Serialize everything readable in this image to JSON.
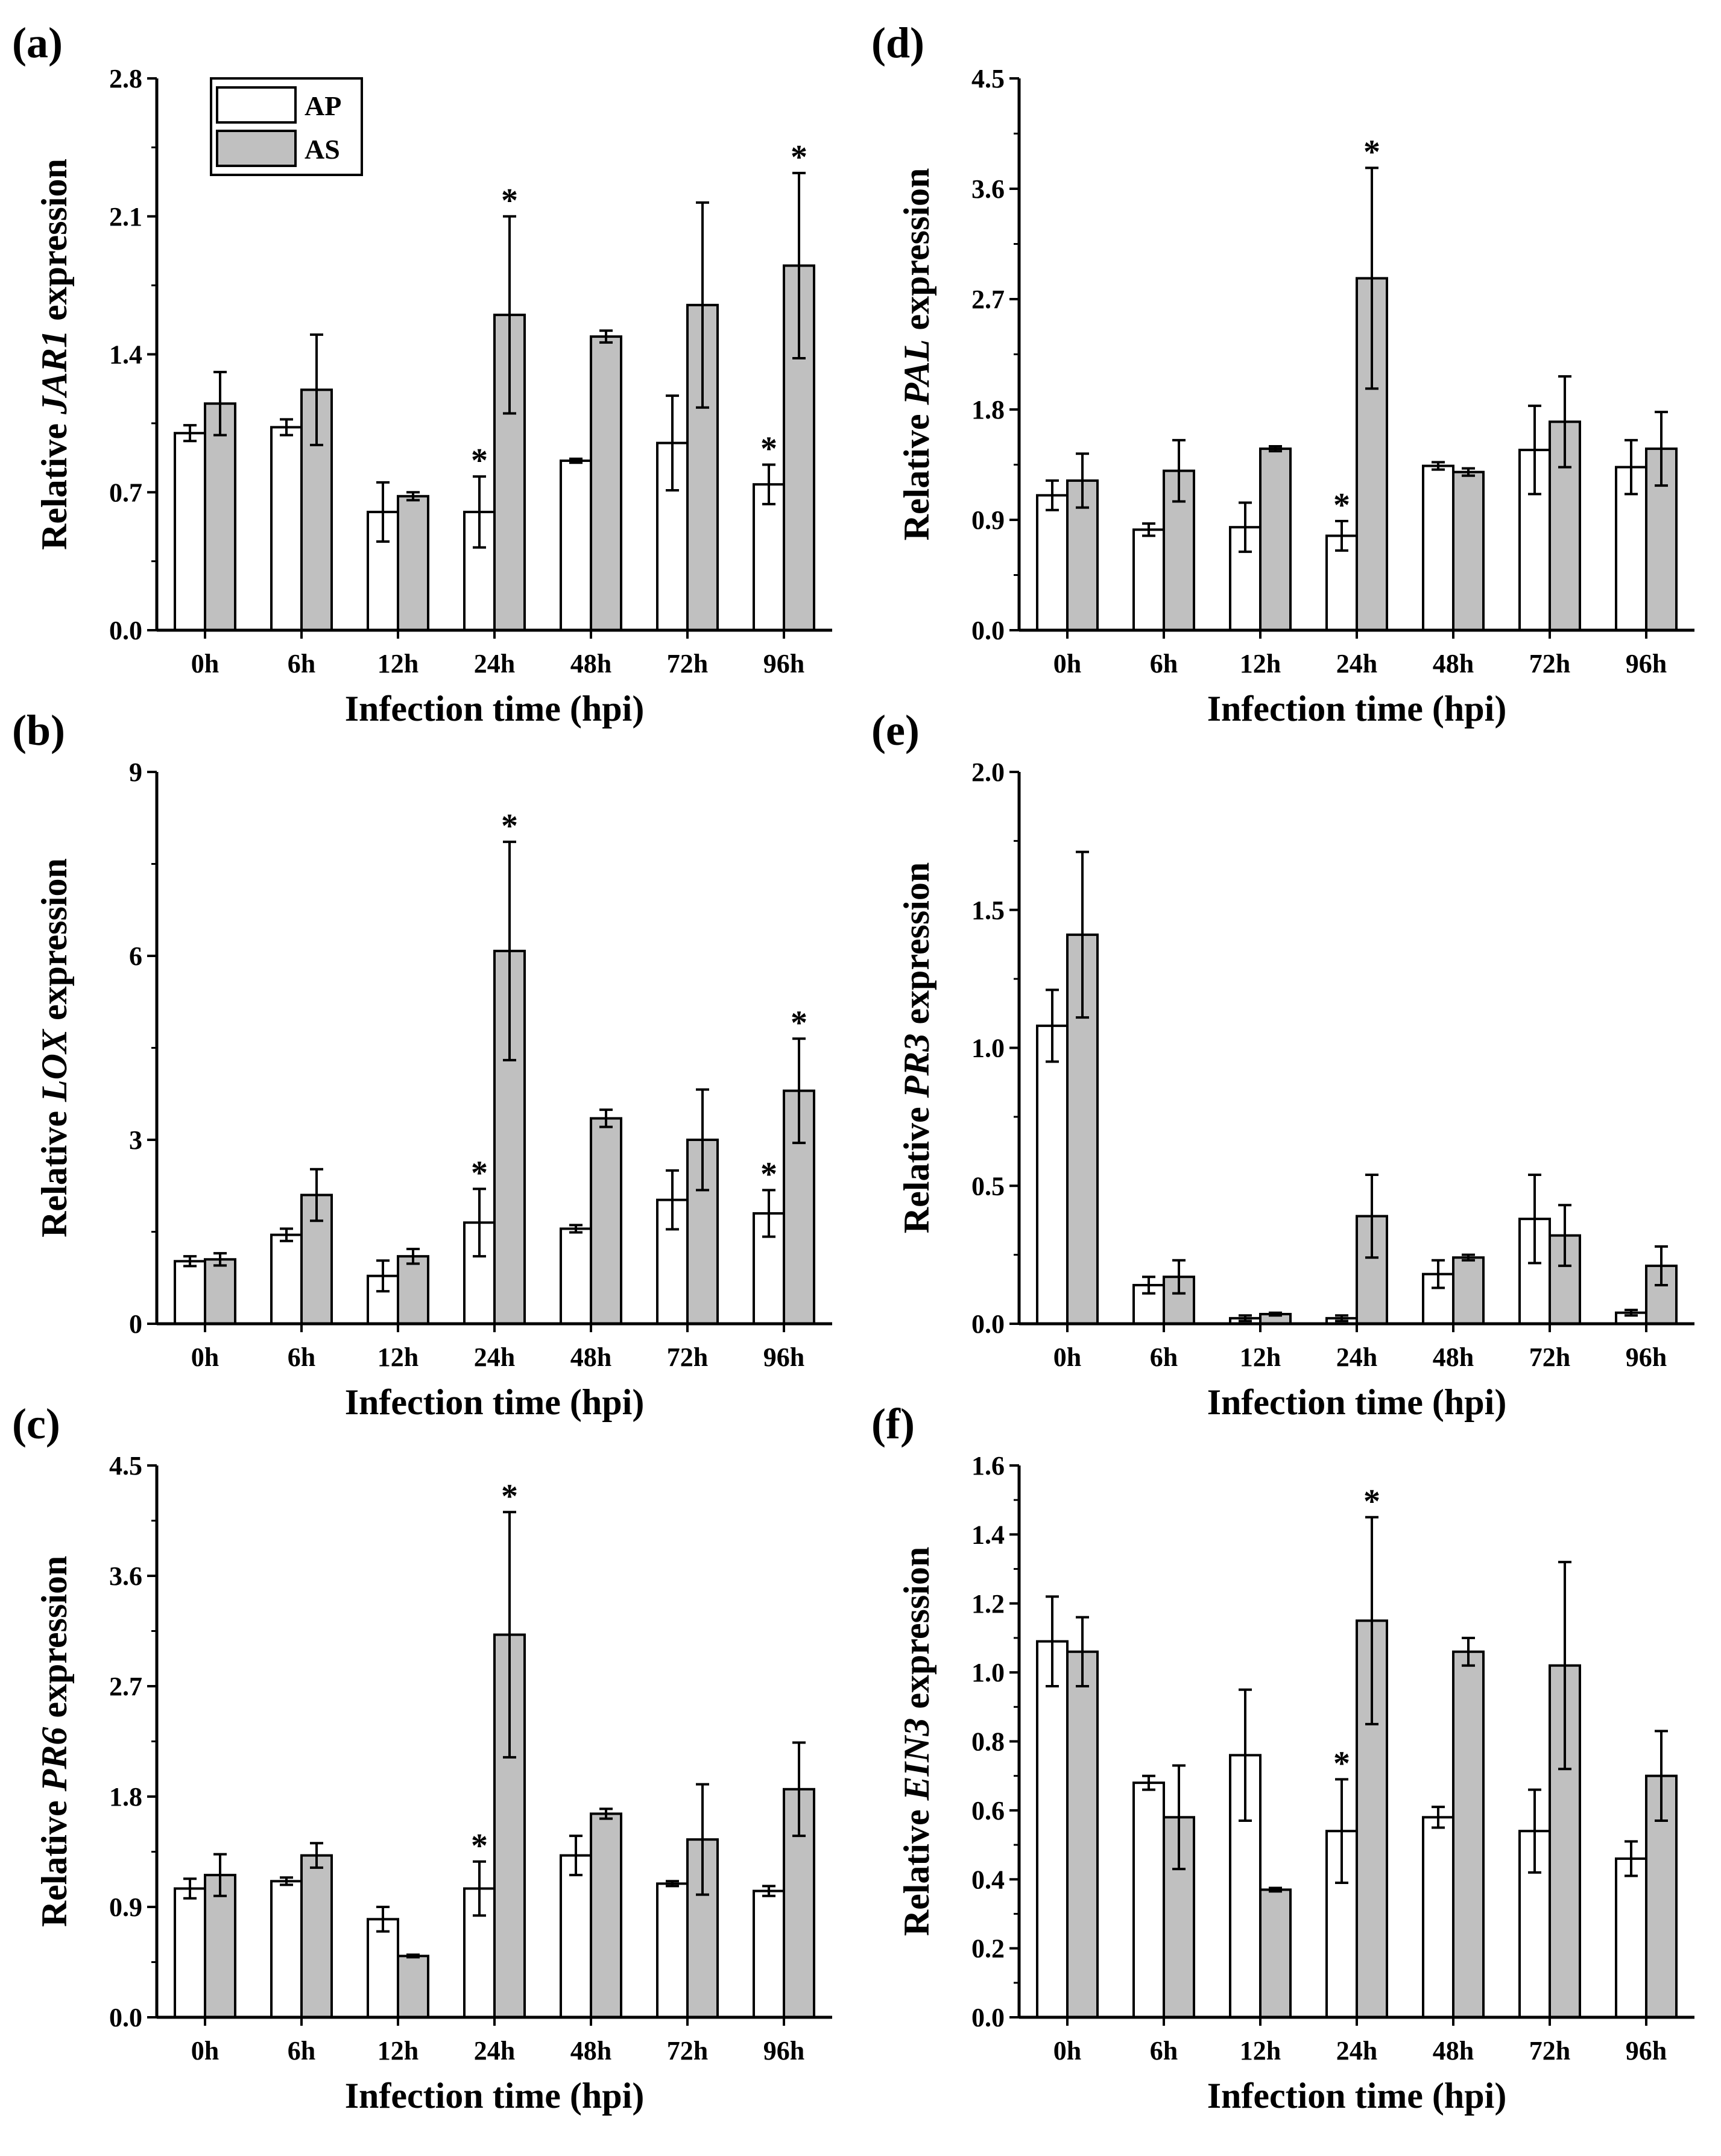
{
  "legend": {
    "series": [
      {
        "name": "AP",
        "color": "#ffffff"
      },
      {
        "name": "AS",
        "color": "#c0c0c0"
      }
    ]
  },
  "chart_data": [
    {
      "panel_label": "(a)",
      "type": "bar",
      "ylabel_prefix": "Relative ",
      "gene": "JAR1",
      "ylabel_suffix": " expression",
      "xlabel": "Infection time (hpi)",
      "categories": [
        "0h",
        "6h",
        "12h",
        "24h",
        "48h",
        "72h",
        "96h"
      ],
      "ylim": [
        0,
        2.8
      ],
      "yticks": [
        "0.0",
        "0.7",
        "1.4",
        "2.1",
        "2.8"
      ],
      "series": [
        {
          "name": "AP",
          "values": [
            1.0,
            1.03,
            0.6,
            0.6,
            0.86,
            0.95,
            0.74
          ],
          "errors": [
            0.04,
            0.04,
            0.15,
            0.18,
            0.01,
            0.24,
            0.1
          ],
          "sig": [
            false,
            false,
            false,
            true,
            false,
            false,
            true
          ]
        },
        {
          "name": "AS",
          "values": [
            1.15,
            1.22,
            0.68,
            1.6,
            1.49,
            1.65,
            1.85
          ],
          "errors": [
            0.16,
            0.28,
            0.02,
            0.5,
            0.03,
            0.52,
            0.47
          ],
          "sig": [
            false,
            false,
            false,
            true,
            false,
            false,
            true
          ]
        }
      ],
      "significance_marker": "*"
    },
    {
      "panel_label": "(b)",
      "type": "bar",
      "ylabel_prefix": "Relative ",
      "gene": "LOX",
      "ylabel_suffix": " expression",
      "xlabel": "Infection time (hpi)",
      "categories": [
        "0h",
        "6h",
        "12h",
        "24h",
        "48h",
        "72h",
        "96h"
      ],
      "ylim": [
        0,
        9
      ],
      "yticks": [
        "0",
        "3",
        "6",
        "9"
      ],
      "series": [
        {
          "name": "AP",
          "values": [
            1.02,
            1.45,
            0.78,
            1.65,
            1.55,
            2.02,
            1.8
          ],
          "errors": [
            0.08,
            0.1,
            0.25,
            0.55,
            0.06,
            0.48,
            0.38
          ],
          "sig": [
            false,
            false,
            false,
            true,
            false,
            false,
            true
          ]
        },
        {
          "name": "AS",
          "values": [
            1.05,
            2.1,
            1.1,
            6.08,
            3.35,
            3.0,
            3.8
          ],
          "errors": [
            0.1,
            0.42,
            0.12,
            1.78,
            0.14,
            0.82,
            0.85
          ],
          "sig": [
            false,
            false,
            false,
            true,
            false,
            false,
            true
          ]
        }
      ],
      "significance_marker": "*"
    },
    {
      "panel_label": "(c)",
      "type": "bar",
      "ylabel_prefix": "Relative ",
      "gene": "PR6",
      "ylabel_suffix": " expression",
      "xlabel": "Infection time (hpi)",
      "categories": [
        "0h",
        "6h",
        "12h",
        "24h",
        "48h",
        "72h",
        "96h"
      ],
      "ylim": [
        0,
        4.5
      ],
      "yticks": [
        "0.0",
        "0.9",
        "1.8",
        "2.7",
        "3.6",
        "4.5"
      ],
      "series": [
        {
          "name": "AP",
          "values": [
            1.05,
            1.11,
            0.8,
            1.05,
            1.32,
            1.09,
            1.03
          ],
          "errors": [
            0.08,
            0.03,
            0.1,
            0.22,
            0.16,
            0.02,
            0.04
          ],
          "sig": [
            false,
            false,
            false,
            true,
            false,
            false,
            false
          ]
        },
        {
          "name": "AS",
          "values": [
            1.16,
            1.32,
            0.5,
            3.12,
            1.66,
            1.45,
            1.86
          ],
          "errors": [
            0.17,
            0.1,
            0.01,
            1.0,
            0.04,
            0.45,
            0.38
          ],
          "sig": [
            false,
            false,
            false,
            true,
            false,
            false,
            false
          ]
        }
      ],
      "significance_marker": "*"
    },
    {
      "panel_label": "(d)",
      "type": "bar",
      "ylabel_prefix": "Relative ",
      "gene": "PAL",
      "ylabel_suffix": " expression",
      "xlabel": "Infection time (hpi)",
      "categories": [
        "0h",
        "6h",
        "12h",
        "24h",
        "48h",
        "72h",
        "96h"
      ],
      "ylim": [
        0,
        4.5
      ],
      "yticks": [
        "0.0",
        "0.9",
        "1.8",
        "2.7",
        "3.6",
        "4.5"
      ],
      "series": [
        {
          "name": "AP",
          "values": [
            1.1,
            0.82,
            0.84,
            0.77,
            1.34,
            1.47,
            1.33
          ],
          "errors": [
            0.12,
            0.05,
            0.2,
            0.12,
            0.03,
            0.36,
            0.22
          ],
          "sig": [
            false,
            false,
            false,
            true,
            false,
            false,
            false
          ]
        },
        {
          "name": "AS",
          "values": [
            1.22,
            1.3,
            1.48,
            2.87,
            1.29,
            1.7,
            1.48
          ],
          "errors": [
            0.22,
            0.25,
            0.02,
            0.9,
            0.03,
            0.37,
            0.3
          ],
          "sig": [
            false,
            false,
            false,
            true,
            false,
            false,
            false
          ]
        }
      ],
      "significance_marker": "*"
    },
    {
      "panel_label": "(e)",
      "type": "bar",
      "ylabel_prefix": "Relative ",
      "gene": "PR3",
      "ylabel_suffix": " expression",
      "xlabel": "Infection time (hpi)",
      "categories": [
        "0h",
        "6h",
        "12h",
        "24h",
        "48h",
        "72h",
        "96h"
      ],
      "ylim": [
        0,
        2.0
      ],
      "yticks": [
        "0.0",
        "0.5",
        "1.0",
        "1.5",
        "2.0"
      ],
      "series": [
        {
          "name": "AP",
          "values": [
            1.08,
            0.14,
            0.02,
            0.02,
            0.18,
            0.38,
            0.04
          ],
          "errors": [
            0.13,
            0.03,
            0.01,
            0.01,
            0.05,
            0.16,
            0.01
          ],
          "sig": [
            false,
            false,
            false,
            false,
            false,
            false,
            false
          ]
        },
        {
          "name": "AS",
          "values": [
            1.41,
            0.17,
            0.035,
            0.39,
            0.24,
            0.32,
            0.21
          ],
          "errors": [
            0.3,
            0.06,
            0.005,
            0.15,
            0.01,
            0.11,
            0.07
          ],
          "sig": [
            false,
            false,
            false,
            false,
            false,
            false,
            false
          ]
        }
      ],
      "significance_marker": "*"
    },
    {
      "panel_label": "(f)",
      "type": "bar",
      "ylabel_prefix": "Relative ",
      "gene": "EIN3",
      "ylabel_suffix": " expression",
      "xlabel": "Infection time (hpi)",
      "categories": [
        "0h",
        "6h",
        "12h",
        "24h",
        "48h",
        "72h",
        "96h"
      ],
      "ylim": [
        0,
        1.6
      ],
      "yticks": [
        "0.0",
        "0.2",
        "0.4",
        "0.6",
        "0.8",
        "1.0",
        "1.2",
        "1.4",
        "1.6"
      ],
      "series": [
        {
          "name": "AP",
          "values": [
            1.09,
            0.68,
            0.76,
            0.54,
            0.58,
            0.54,
            0.46
          ],
          "errors": [
            0.13,
            0.02,
            0.19,
            0.15,
            0.03,
            0.12,
            0.05
          ],
          "sig": [
            false,
            false,
            false,
            true,
            false,
            false,
            false
          ]
        },
        {
          "name": "AS",
          "values": [
            1.06,
            0.58,
            0.37,
            1.15,
            1.06,
            1.02,
            0.7
          ],
          "errors": [
            0.1,
            0.15,
            0.005,
            0.3,
            0.04,
            0.3,
            0.13
          ],
          "sig": [
            false,
            false,
            false,
            true,
            false,
            false,
            false
          ]
        }
      ],
      "significance_marker": "*"
    }
  ]
}
